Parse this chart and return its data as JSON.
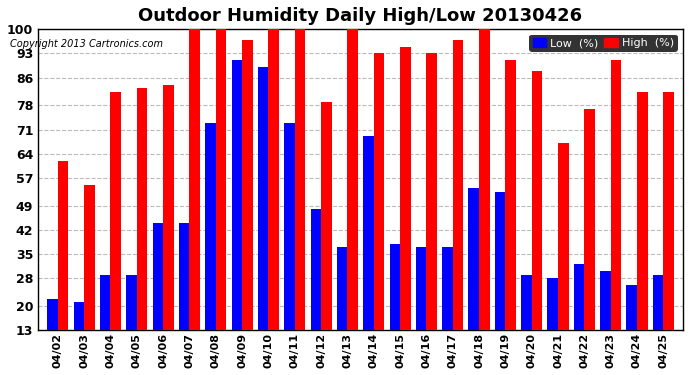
{
  "title": "Outdoor Humidity Daily High/Low 20130426",
  "copyright": "Copyright 2013 Cartronics.com",
  "dates": [
    "04/02",
    "04/03",
    "04/04",
    "04/05",
    "04/06",
    "04/07",
    "04/08",
    "04/09",
    "04/10",
    "04/11",
    "04/12",
    "04/13",
    "04/14",
    "04/15",
    "04/16",
    "04/17",
    "04/18",
    "04/19",
    "04/20",
    "04/21",
    "04/22",
    "04/23",
    "04/24",
    "04/25"
  ],
  "high_values": [
    62,
    55,
    82,
    83,
    84,
    100,
    100,
    97,
    100,
    100,
    79,
    100,
    93,
    95,
    93,
    97,
    100,
    91,
    88,
    67,
    77,
    91,
    82,
    82
  ],
  "low_values": [
    22,
    21,
    29,
    29,
    44,
    44,
    73,
    91,
    89,
    73,
    48,
    37,
    69,
    38,
    37,
    37,
    54,
    53,
    29,
    28,
    32,
    30,
    26,
    29
  ],
  "high_color": "#ff0000",
  "low_color": "#0000ff",
  "bg_color": "#ffffff",
  "grid_color": "#bbbbbb",
  "yticks": [
    13,
    20,
    28,
    35,
    42,
    49,
    57,
    64,
    71,
    78,
    86,
    93,
    100
  ],
  "ymin": 13,
  "ymax": 100,
  "bar_width": 0.4,
  "title_fontsize": 13,
  "legend_label_low": "Low  (%)",
  "legend_label_high": "High  (%)"
}
